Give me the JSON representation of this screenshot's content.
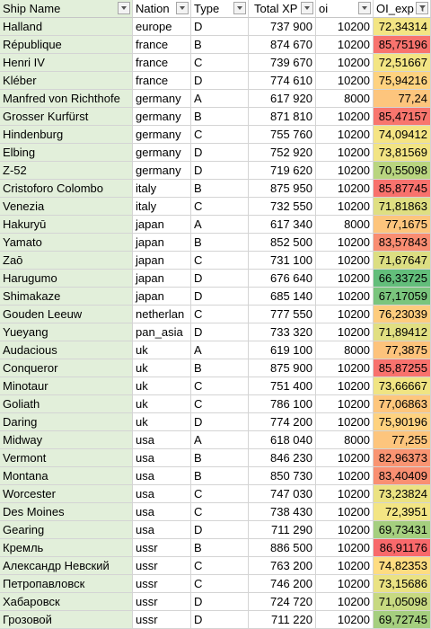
{
  "headers": {
    "ship_name": "Ship Name",
    "nation": "Nation",
    "type": "Type",
    "total_xp": "Total XP",
    "oi": "oi",
    "oi_exp": "OI_exp"
  },
  "rows": [
    {
      "name": "Halland",
      "nation": "europe",
      "type": "D",
      "xp": "737 900",
      "oi": "10200",
      "exp": "72,34314",
      "color": "#f3e584"
    },
    {
      "name": "République",
      "nation": "france",
      "type": "B",
      "xp": "874 670",
      "oi": "10200",
      "exp": "85,75196",
      "color": "#f8736e"
    },
    {
      "name": "Henri IV",
      "nation": "france",
      "type": "C",
      "xp": "739 670",
      "oi": "10200",
      "exp": "72,51667",
      "color": "#f3e584"
    },
    {
      "name": "Kléber",
      "nation": "france",
      "type": "D",
      "xp": "774 610",
      "oi": "10200",
      "exp": "75,94216",
      "color": "#fed280"
    },
    {
      "name": "Manfred von Richthofe",
      "nation": "germany",
      "type": "A",
      "xp": "617 920",
      "oi": "8000",
      "exp": "77,24",
      "color": "#fdc57d"
    },
    {
      "name": "Grosser Kurfürst",
      "nation": "germany",
      "type": "B",
      "xp": "871 810",
      "oi": "10200",
      "exp": "85,47157",
      "color": "#f8766e"
    },
    {
      "name": "Hindenburg",
      "nation": "germany",
      "type": "C",
      "xp": "755 760",
      "oi": "10200",
      "exp": "74,09412",
      "color": "#f5e484"
    },
    {
      "name": "Elbing",
      "nation": "germany",
      "type": "D",
      "xp": "752 920",
      "oi": "10200",
      "exp": "73,81569",
      "color": "#f2e484"
    },
    {
      "name": "Z-52",
      "nation": "germany",
      "type": "D",
      "xp": "719 620",
      "oi": "10200",
      "exp": "70,55098",
      "color": "#b9d580"
    },
    {
      "name": "Cristoforo Colombo",
      "nation": "italy",
      "type": "B",
      "xp": "875 950",
      "oi": "10200",
      "exp": "85,87745",
      "color": "#f8726d"
    },
    {
      "name": "Venezia",
      "nation": "italy",
      "type": "C",
      "xp": "732 550",
      "oi": "10200",
      "exp": "71,81863",
      "color": "#dfdf82"
    },
    {
      "name": "Hakuryū",
      "nation": "japan",
      "type": "A",
      "xp": "617 340",
      "oi": "8000",
      "exp": "77,1675",
      "color": "#fdc57d"
    },
    {
      "name": "Yamato",
      "nation": "japan",
      "type": "B",
      "xp": "852 500",
      "oi": "10200",
      "exp": "83,57843",
      "color": "#f98d72"
    },
    {
      "name": "Zaō",
      "nation": "japan",
      "type": "C",
      "xp": "731 100",
      "oi": "10200",
      "exp": "71,67647",
      "color": "#dcde82"
    },
    {
      "name": "Harugumo",
      "nation": "japan",
      "type": "D",
      "xp": "676 640",
      "oi": "10200",
      "exp": "66,33725",
      "color": "#63be7b"
    },
    {
      "name": "Shimakaze",
      "nation": "japan",
      "type": "D",
      "xp": "685 140",
      "oi": "10200",
      "exp": "67,17059",
      "color": "#7ac57d"
    },
    {
      "name": "Gouden Leeuw",
      "nation": "netherlan",
      "type": "C",
      "xp": "777 550",
      "oi": "10200",
      "exp": "76,23039",
      "color": "#fdcc7e"
    },
    {
      "name": "Yueyang",
      "nation": "pan_asia",
      "type": "D",
      "xp": "733 320",
      "oi": "10200",
      "exp": "71,89412",
      "color": "#e1df82"
    },
    {
      "name": "Audacious",
      "nation": "uk",
      "type": "A",
      "xp": "619 100",
      "oi": "8000",
      "exp": "77,3875",
      "color": "#fdc37c"
    },
    {
      "name": "Conqueror",
      "nation": "uk",
      "type": "B",
      "xp": "875 900",
      "oi": "10200",
      "exp": "85,87255",
      "color": "#f8726d"
    },
    {
      "name": "Minotaur",
      "nation": "uk",
      "type": "C",
      "xp": "751 400",
      "oi": "10200",
      "exp": "73,66667",
      "color": "#f0e483"
    },
    {
      "name": "Goliath",
      "nation": "uk",
      "type": "C",
      "xp": "786 100",
      "oi": "10200",
      "exp": "77,06863",
      "color": "#fdc67d"
    },
    {
      "name": "Daring",
      "nation": "uk",
      "type": "D",
      "xp": "774 200",
      "oi": "10200",
      "exp": "75,90196",
      "color": "#fed280"
    },
    {
      "name": "Midway",
      "nation": "usa",
      "type": "A",
      "xp": "618 040",
      "oi": "8000",
      "exp": "77,255",
      "color": "#fdc57d"
    },
    {
      "name": "Vermont",
      "nation": "usa",
      "type": "B",
      "xp": "846 230",
      "oi": "10200",
      "exp": "82,96373",
      "color": "#f99472"
    },
    {
      "name": "Montana",
      "nation": "usa",
      "type": "B",
      "xp": "850 730",
      "oi": "10200",
      "exp": "83,40409",
      "color": "#f98f72"
    },
    {
      "name": "Worcester",
      "nation": "usa",
      "type": "C",
      "xp": "747 030",
      "oi": "10200",
      "exp": "73,23824",
      "color": "#ebe283"
    },
    {
      "name": "Des Moines",
      "nation": "usa",
      "type": "C",
      "xp": "738 430",
      "oi": "10200",
      "exp": "72,3951",
      "color": "#f3e584"
    },
    {
      "name": "Gearing",
      "nation": "usa",
      "type": "D",
      "xp": "711 290",
      "oi": "10200",
      "exp": "69,73431",
      "color": "#a5cf7f"
    },
    {
      "name": "Кремль",
      "nation": "ussr",
      "type": "B",
      "xp": "886 500",
      "oi": "10200",
      "exp": "86,91176",
      "color": "#f8696b"
    },
    {
      "name": "Александр Невский",
      "nation": "ussr",
      "type": "C",
      "xp": "763 200",
      "oi": "10200",
      "exp": "74,82353",
      "color": "#fedc81"
    },
    {
      "name": "Петропавловск",
      "nation": "ussr",
      "type": "C",
      "xp": "746 200",
      "oi": "10200",
      "exp": "73,15686",
      "color": "#eae283"
    },
    {
      "name": "Хабаровск",
      "nation": "ussr",
      "type": "D",
      "xp": "724 720",
      "oi": "10200",
      "exp": "71,05098",
      "color": "#c7d981"
    },
    {
      "name": "Грозовой",
      "nation": "ussr",
      "type": "D",
      "xp": "711 220",
      "oi": "10200",
      "exp": "69,72745",
      "color": "#a5cf7f"
    }
  ]
}
